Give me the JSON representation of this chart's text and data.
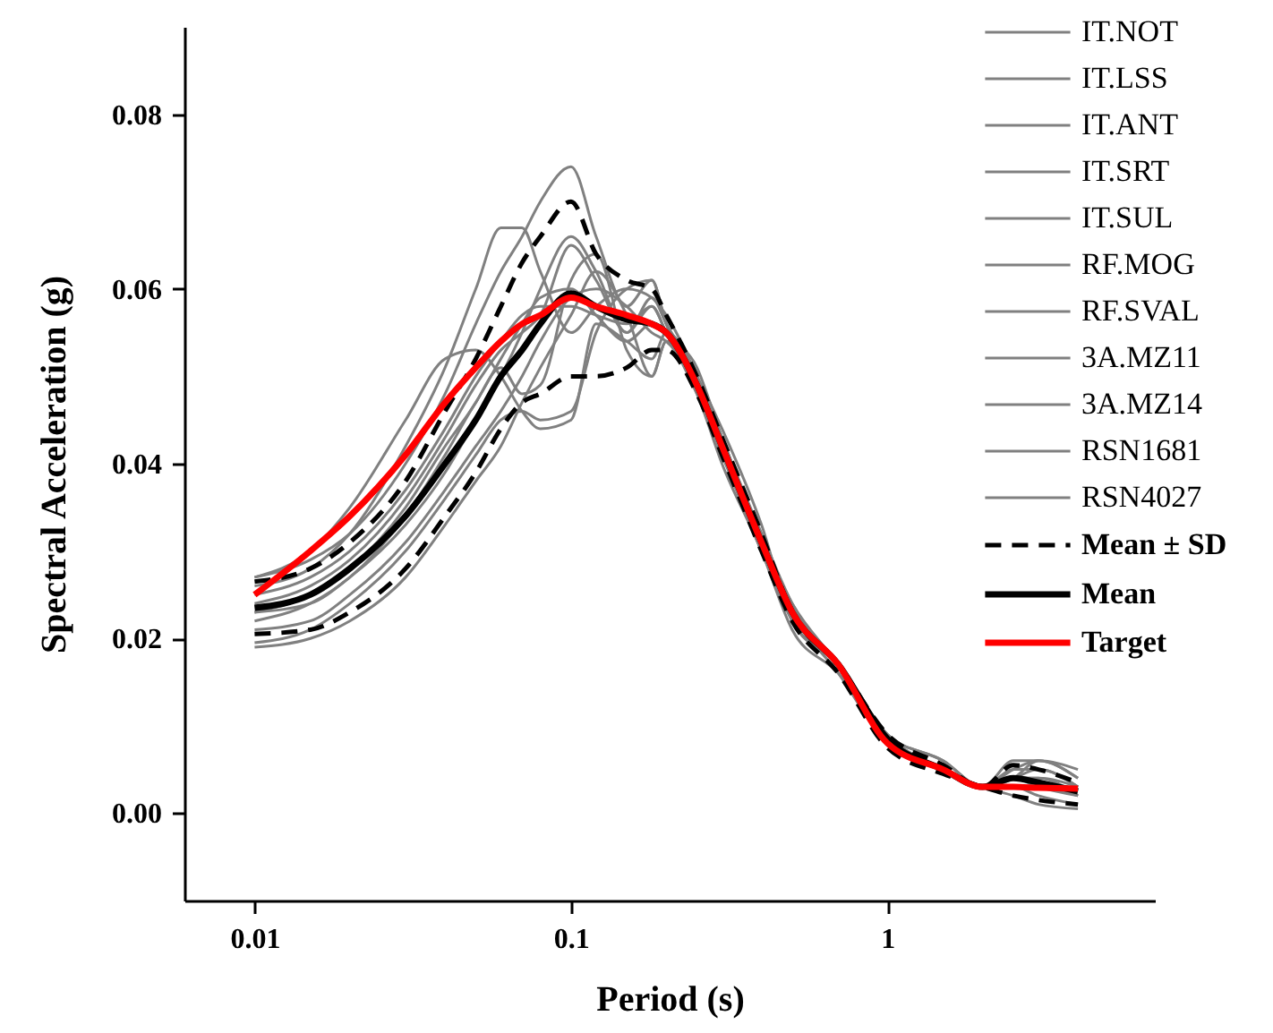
{
  "chart_data": {
    "type": "line",
    "xlabel": "Period (s)",
    "ylabel": "Spectral Acceleration (g)",
    "log": "x",
    "grid": false,
    "legend": "top right",
    "xlim": [
      0.006,
      7
    ],
    "xticks": [
      {
        "value": 0.01,
        "label": "0.01"
      },
      {
        "value": 0.1,
        "label": "0.1"
      },
      {
        "value": 1,
        "label": "1"
      }
    ],
    "ylim": [
      -0.01,
      0.09
    ],
    "yticks": [
      {
        "value": 0,
        "label": "0.00"
      },
      {
        "value": 0.02,
        "label": "0.02"
      },
      {
        "value": 0.04,
        "label": "0.04"
      },
      {
        "value": 0.06,
        "label": "0.06"
      },
      {
        "value": 0.08,
        "label": "0.08"
      }
    ],
    "x": [
      0.01,
      0.015,
      0.02,
      0.03,
      0.04,
      0.05,
      0.06,
      0.07,
      0.08,
      0.1,
      0.12,
      0.15,
      0.18,
      0.2,
      0.25,
      0.3,
      0.4,
      0.5,
      0.7,
      1,
      1.5,
      2,
      2.5,
      3,
      4
    ],
    "series": [
      {
        "name": "IT.NOT",
        "color": "#808080",
        "values": [
          0.027,
          0.029,
          0.032,
          0.04,
          0.048,
          0.056,
          0.062,
          0.066,
          0.07,
          0.074,
          0.066,
          0.058,
          0.061,
          0.056,
          0.051,
          0.043,
          0.032,
          0.024,
          0.017,
          0.009,
          0.006,
          0.003,
          0.006,
          0.006,
          0.004
        ]
      },
      {
        "name": "IT.LSS",
        "color": "#808080",
        "values": [
          0.026,
          0.028,
          0.032,
          0.042,
          0.051,
          0.06,
          0.067,
          0.067,
          0.062,
          0.055,
          0.058,
          0.06,
          0.059,
          0.057,
          0.05,
          0.043,
          0.031,
          0.023,
          0.017,
          0.008,
          0.005,
          0.003,
          0.005,
          0.005,
          0.003
        ]
      },
      {
        "name": "IT.ANT",
        "color": "#808080",
        "values": [
          0.027,
          0.03,
          0.035,
          0.045,
          0.052,
          0.053,
          0.05,
          0.046,
          0.044,
          0.045,
          0.056,
          0.054,
          0.052,
          0.055,
          0.05,
          0.042,
          0.03,
          0.023,
          0.017,
          0.008,
          0.005,
          0.003,
          0.004,
          0.003,
          0.002
        ]
      },
      {
        "name": "IT.SRT",
        "color": "#808080",
        "values": [
          0.023,
          0.024,
          0.027,
          0.033,
          0.039,
          0.045,
          0.05,
          0.055,
          0.06,
          0.066,
          0.062,
          0.055,
          0.058,
          0.055,
          0.049,
          0.041,
          0.032,
          0.023,
          0.017,
          0.008,
          0.005,
          0.003,
          0.004,
          0.004,
          0.002
        ]
      },
      {
        "name": "IT.SUL",
        "color": "#808080",
        "values": [
          0.019,
          0.02,
          0.022,
          0.027,
          0.033,
          0.038,
          0.042,
          0.047,
          0.051,
          0.057,
          0.062,
          0.057,
          0.05,
          0.054,
          0.048,
          0.04,
          0.03,
          0.021,
          0.016,
          0.008,
          0.005,
          0.003,
          0.003,
          0.002,
          0.001
        ]
      },
      {
        "name": "RF.MOG",
        "color": "#808080",
        "values": [
          0.0195,
          0.021,
          0.024,
          0.03,
          0.036,
          0.041,
          0.045,
          0.046,
          0.045,
          0.046,
          0.055,
          0.06,
          0.061,
          0.056,
          0.05,
          0.044,
          0.033,
          0.022,
          0.017,
          0.009,
          0.005,
          0.003,
          0.004,
          0.006,
          0.005
        ]
      },
      {
        "name": "RF.SVAL",
        "color": "#808080",
        "values": [
          0.022,
          0.024,
          0.027,
          0.034,
          0.041,
          0.047,
          0.051,
          0.048,
          0.049,
          0.061,
          0.064,
          0.053,
          0.05,
          0.054,
          0.049,
          0.042,
          0.031,
          0.023,
          0.016,
          0.008,
          0.005,
          0.003,
          0.002,
          0.001,
          0.0005
        ]
      },
      {
        "name": "3A.MZ11",
        "color": "#808080",
        "values": [
          0.025,
          0.027,
          0.03,
          0.037,
          0.044,
          0.05,
          0.054,
          0.057,
          0.058,
          0.058,
          0.057,
          0.056,
          0.058,
          0.055,
          0.048,
          0.041,
          0.03,
          0.022,
          0.017,
          0.008,
          0.005,
          0.003,
          0.003,
          0.003,
          0.002
        ]
      },
      {
        "name": "3A.MZ14",
        "color": "#808080",
        "values": [
          0.021,
          0.022,
          0.025,
          0.031,
          0.037,
          0.042,
          0.046,
          0.05,
          0.054,
          0.059,
          0.06,
          0.058,
          0.055,
          0.054,
          0.049,
          0.042,
          0.031,
          0.023,
          0.017,
          0.008,
          0.005,
          0.003,
          0.004,
          0.004,
          0.003
        ]
      },
      {
        "name": "RSN1681",
        "color": "#808080",
        "values": [
          0.024,
          0.026,
          0.029,
          0.036,
          0.043,
          0.049,
          0.053,
          0.055,
          0.057,
          0.065,
          0.061,
          0.055,
          0.059,
          0.056,
          0.05,
          0.043,
          0.031,
          0.024,
          0.017,
          0.009,
          0.006,
          0.003,
          0.005,
          0.006,
          0.004
        ]
      },
      {
        "name": "RSN4027",
        "color": "#808080",
        "values": [
          0.023,
          0.025,
          0.028,
          0.035,
          0.042,
          0.047,
          0.052,
          0.056,
          0.059,
          0.06,
          0.057,
          0.054,
          0.056,
          0.055,
          0.049,
          0.042,
          0.031,
          0.023,
          0.017,
          0.008,
          0.005,
          0.003,
          0.004,
          0.005,
          0.003
        ]
      },
      {
        "name": "Mean ± SD",
        "color": "#000000",
        "line_style": "dashed",
        "values": [
          0.0265,
          0.028,
          0.031,
          0.038,
          0.046,
          0.052,
          0.058,
          0.063,
          0.066,
          0.07,
          0.064,
          0.061,
          0.06,
          0.057,
          0.05,
          0.043,
          0.032,
          0.023,
          0.017,
          0.009,
          0.0055,
          0.003,
          0.0055,
          0.005,
          0.0035
        ]
      },
      {
        "color": "#000000",
        "line_style": "dashed",
        "values": [
          0.0205,
          0.021,
          0.023,
          0.028,
          0.034,
          0.039,
          0.044,
          0.047,
          0.048,
          0.05,
          0.05,
          0.051,
          0.053,
          0.053,
          0.048,
          0.041,
          0.03,
          0.022,
          0.016,
          0.0075,
          0.0045,
          0.003,
          0.002,
          0.0015,
          0.001
        ]
      },
      {
        "name": "Mean",
        "color": "#000000",
        "line_style": "solid",
        "values": [
          0.0235,
          0.025,
          0.028,
          0.034,
          0.04,
          0.045,
          0.05,
          0.053,
          0.056,
          0.0595,
          0.058,
          0.0565,
          0.056,
          0.055,
          0.049,
          0.042,
          0.031,
          0.023,
          0.017,
          0.0085,
          0.005,
          0.003,
          0.004,
          0.0035,
          0.0025
        ]
      },
      {
        "name": "Target",
        "color": "#ff0000",
        "line_style": "solid",
        "values": [
          0.025,
          0.03,
          0.034,
          0.041,
          0.047,
          0.051,
          0.054,
          0.056,
          0.057,
          0.059,
          0.058,
          0.057,
          0.056,
          0.055,
          0.049,
          0.042,
          0.031,
          0.023,
          0.017,
          0.008,
          0.005,
          0.003,
          0.003,
          0.0029,
          0.0028
        ]
      }
    ]
  }
}
